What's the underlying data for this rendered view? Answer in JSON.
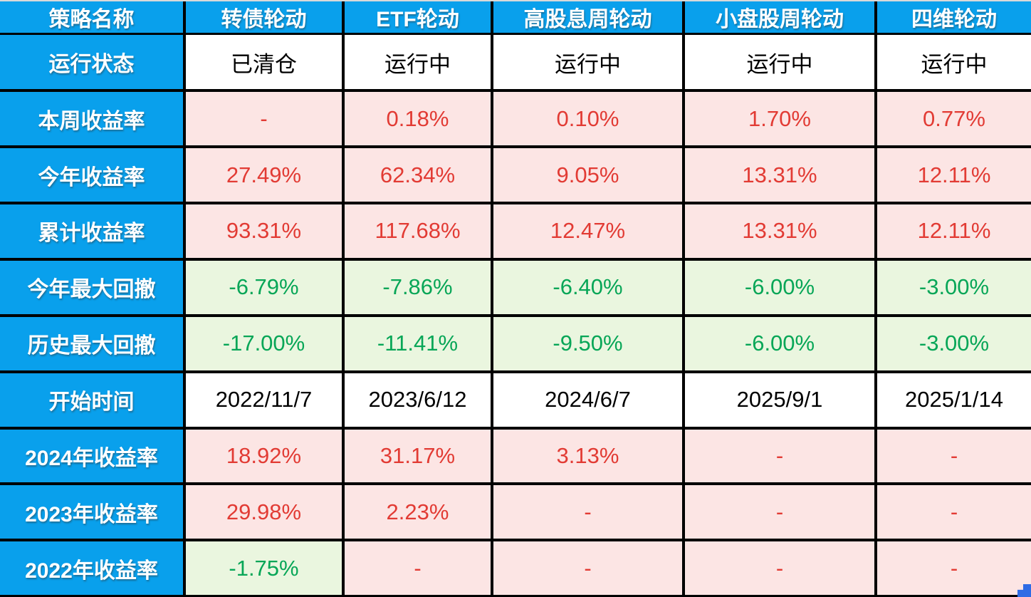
{
  "table": {
    "corner_label": "策略名称",
    "columns": [
      "转债轮动",
      "ETF轮动",
      "高股息周轮动",
      "小盘股周轮动",
      "四维轮动"
    ],
    "rows": [
      {
        "label": "运行状态",
        "styles": [
          "plain",
          "plain",
          "plain",
          "plain",
          "plain"
        ],
        "values": [
          "已清仓",
          "运行中",
          "运行中",
          "运行中",
          "运行中"
        ]
      },
      {
        "label": "本周收益率",
        "styles": [
          "pink",
          "pink",
          "pink",
          "pink",
          "pink"
        ],
        "values": [
          "-",
          "0.18%",
          "0.10%",
          "1.70%",
          "0.77%"
        ]
      },
      {
        "label": "今年收益率",
        "styles": [
          "pink",
          "pink",
          "pink",
          "pink",
          "pink"
        ],
        "values": [
          "27.49%",
          "62.34%",
          "9.05%",
          "13.31%",
          "12.11%"
        ]
      },
      {
        "label": "累计收益率",
        "styles": [
          "pink",
          "pink",
          "pink",
          "pink",
          "pink"
        ],
        "values": [
          "93.31%",
          "117.68%",
          "12.47%",
          "13.31%",
          "12.11%"
        ]
      },
      {
        "label": "今年最大回撤",
        "styles": [
          "green",
          "green",
          "green",
          "green",
          "green"
        ],
        "values": [
          "-6.79%",
          "-7.86%",
          "-6.40%",
          "-6.00%",
          "-3.00%"
        ]
      },
      {
        "label": "历史最大回撤",
        "styles": [
          "green",
          "green",
          "green",
          "green",
          "green"
        ],
        "values": [
          "-17.00%",
          "-11.41%",
          "-9.50%",
          "-6.00%",
          "-3.00%"
        ]
      },
      {
        "label": "开始时间",
        "styles": [
          "plain",
          "plain",
          "plain",
          "plain",
          "plain"
        ],
        "values": [
          "2022/11/7",
          "2023/6/12",
          "2024/6/7",
          "2025/9/1",
          "2025/1/14"
        ]
      },
      {
        "label": "2024年收益率",
        "styles": [
          "pink",
          "pink",
          "pink",
          "pink",
          "pink"
        ],
        "values": [
          "18.92%",
          "31.17%",
          "3.13%",
          "-",
          "-"
        ]
      },
      {
        "label": "2023年收益率",
        "styles": [
          "pink",
          "pink",
          "pink",
          "pink",
          "pink"
        ],
        "values": [
          "29.98%",
          "2.23%",
          "-",
          "-",
          "-"
        ]
      },
      {
        "label": "2022年收益率",
        "styles": [
          "green",
          "pink",
          "pink",
          "pink",
          "pink"
        ],
        "values": [
          "-1.75%",
          "-",
          "-",
          "-",
          "-"
        ]
      }
    ]
  },
  "colors": {
    "header_blue": "#09A0EC",
    "gain_cell_bg": "#FCE5E4",
    "gain_text_red": "#E23B34",
    "drawdown_cell_bg": "#EAF6DF",
    "drawdown_text_green": "#07A657",
    "grid_line": "#000000",
    "selection_handle_blue": "#2E6BE5"
  },
  "selection_handle": {
    "shape": "corner-L",
    "position": "bottom-right"
  }
}
